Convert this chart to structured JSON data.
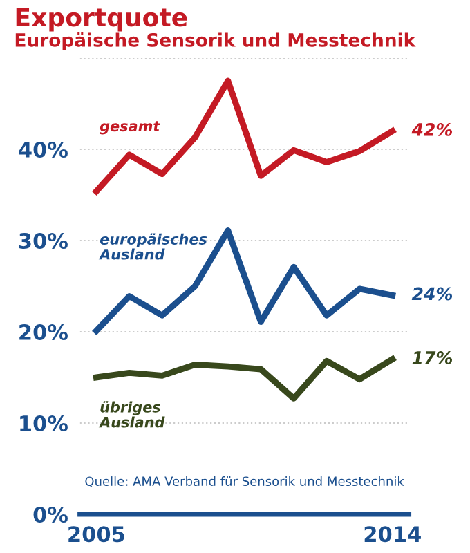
{
  "chart_data": {
    "type": "line",
    "title": "Exportquote",
    "subtitle": "Europäische Sensorik und Messtechnik",
    "x": [
      2005,
      2006,
      2007,
      2008,
      2009,
      2010,
      2011,
      2012,
      2013,
      2014
    ],
    "series": [
      {
        "name": "gesamt",
        "color": "#c41a24",
        "values": [
          35.4,
          39.4,
          37.3,
          41.3,
          47.5,
          37.1,
          39.9,
          38.6,
          39.8,
          42
        ],
        "value_labels": [
          null,
          null,
          null,
          null,
          null,
          null,
          null,
          null,
          null,
          "42%"
        ]
      },
      {
        "name": "europäisches\nAusland",
        "color": "#1b4f8e",
        "values": [
          20.1,
          23.9,
          21.8,
          25.0,
          31.1,
          21.1,
          27.1,
          21.8,
          24.7,
          24
        ],
        "value_labels": [
          null,
          null,
          null,
          null,
          null,
          null,
          null,
          null,
          null,
          "24%"
        ]
      },
      {
        "name": "übriges\nAusland",
        "color": "#38481c",
        "values": [
          15.0,
          15.5,
          15.2,
          16.4,
          16.2,
          15.9,
          12.7,
          16.8,
          14.8,
          17
        ],
        "value_labels": [
          null,
          null,
          null,
          null,
          null,
          null,
          null,
          null,
          null,
          "17%"
        ]
      }
    ],
    "xlim": [
      2004.5,
      2014.5
    ],
    "xticks": [
      2005,
      2014
    ],
    "ylim": [
      0,
      50
    ],
    "yticks": [
      {
        "value": 0,
        "label": "0%"
      },
      {
        "value": 10,
        "label": "10%"
      },
      {
        "value": 20,
        "label": "20%"
      },
      {
        "value": 30,
        "label": "30%"
      },
      {
        "value": 40,
        "label": "40%"
      },
      {
        "value": 50,
        "label": null
      }
    ],
    "grid": "y",
    "legend": false,
    "marker": "none",
    "line_style": "solid",
    "annotations": [
      "Quelle: AMA Verband für Sensorik und Messtechnik"
    ]
  }
}
